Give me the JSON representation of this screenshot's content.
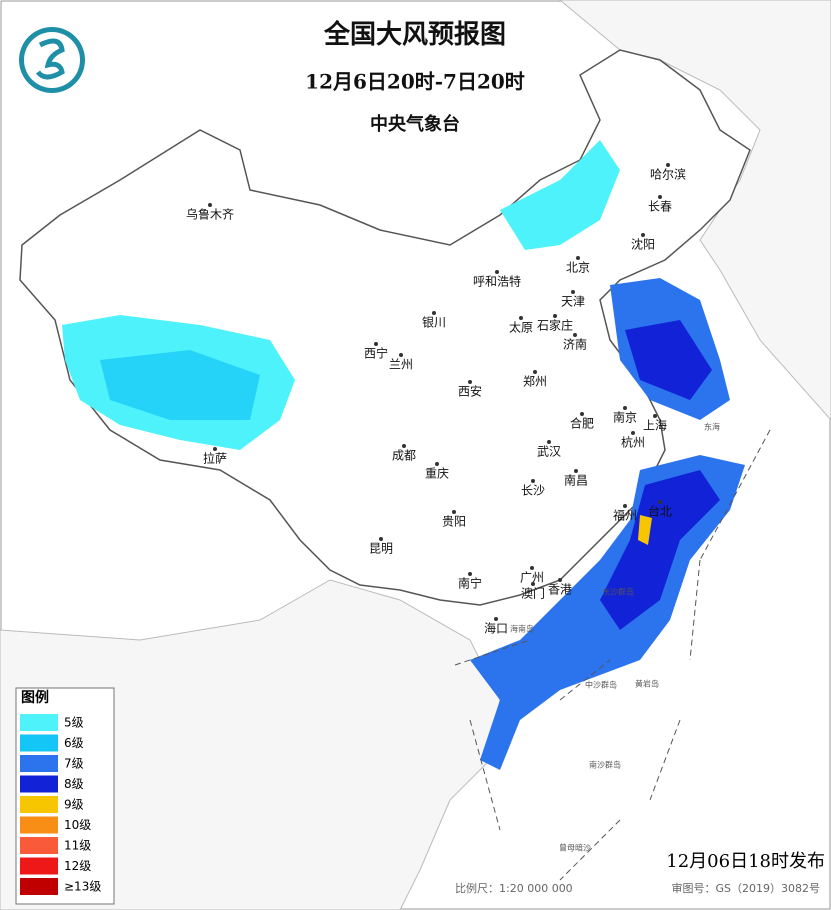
{
  "header": {
    "title": "全国大风预报图",
    "subtitle": "12月6日20时-7日20时",
    "issuer": "中央气象台"
  },
  "legend": {
    "title": "图例",
    "items": [
      {
        "label": "5级",
        "color": "#4ef2fa"
      },
      {
        "label": "6级",
        "color": "#14c6f6"
      },
      {
        "label": "7级",
        "color": "#2b74ee"
      },
      {
        "label": "8级",
        "color": "#1222d6"
      },
      {
        "label": "9级",
        "color": "#f8c600"
      },
      {
        "label": "10级",
        "color": "#f88e16"
      },
      {
        "label": "11级",
        "color": "#f85a3a"
      },
      {
        "label": "12级",
        "color": "#ee1818"
      },
      {
        "label": "≥13级",
        "color": "#c00000"
      }
    ]
  },
  "cities": [
    "乌鲁木齐",
    "哈尔滨",
    "长春",
    "沈阳",
    "北京",
    "呼和浩特",
    "天津",
    "石家庄",
    "太原",
    "济南",
    "银川",
    "西宁",
    "兰州",
    "郑州",
    "西安",
    "南京",
    "合肥",
    "上海",
    "杭州",
    "武汉",
    "成都",
    "拉萨",
    "重庆",
    "南昌",
    "长沙",
    "贵阳",
    "福州",
    "台北",
    "昆明",
    "南宁",
    "广州",
    "香港",
    "澳门",
    "海口"
  ],
  "places": [
    "东海",
    "海南岛",
    "东沙群岛",
    "中沙群岛",
    "黄岩岛",
    "南沙群岛",
    "曾母暗沙"
  ],
  "footer": {
    "issued": "12月06日18时发布",
    "scale": "比例尺：1:20 000 000",
    "review": "审图号：GS（2019）3082号"
  }
}
